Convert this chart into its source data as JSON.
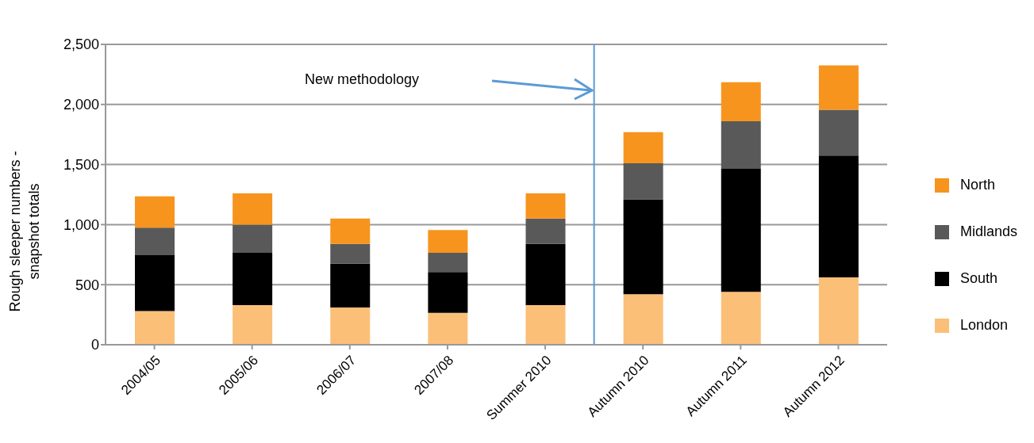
{
  "chart_data": {
    "type": "bar",
    "stacked": true,
    "ylabel": "Rough sleeper numbers - snapshot totals",
    "categories": [
      "2004/05",
      "2005/06",
      "2006/07",
      "2007/08",
      "Summer 2010",
      "Autumn 2010",
      "Autumn 2011",
      "Autumn 2012"
    ],
    "series": [
      {
        "name": "London",
        "color": "#fbbf77",
        "values": [
          280,
          330,
          310,
          265,
          330,
          420,
          440,
          560
        ]
      },
      {
        "name": "South",
        "color": "#000000",
        "values": [
          465,
          435,
          365,
          340,
          510,
          790,
          1025,
          1015
        ]
      },
      {
        "name": "Midlands",
        "color": "#595959",
        "values": [
          230,
          235,
          165,
          160,
          210,
          300,
          395,
          380
        ]
      },
      {
        "name": "North",
        "color": "#f7941d",
        "values": [
          260,
          260,
          210,
          190,
          210,
          260,
          325,
          370
        ]
      }
    ],
    "ylim": [
      0,
      2500
    ],
    "yticks": [
      0,
      {
        "value": 500,
        "label": "500"
      },
      {
        "value": 1000,
        "label": "1,000"
      },
      {
        "value": 1500,
        "label": "1,500"
      },
      {
        "value": 2000,
        "label": "2,000"
      },
      {
        "value": 2500,
        "label": "2,500"
      }
    ],
    "grid": "y",
    "legend": "right",
    "ref_lines": [
      {
        "axis": "x",
        "value": "Autumn 2010",
        "color": "#5b9bd5"
      }
    ],
    "annotations": [
      "New methodology"
    ]
  }
}
